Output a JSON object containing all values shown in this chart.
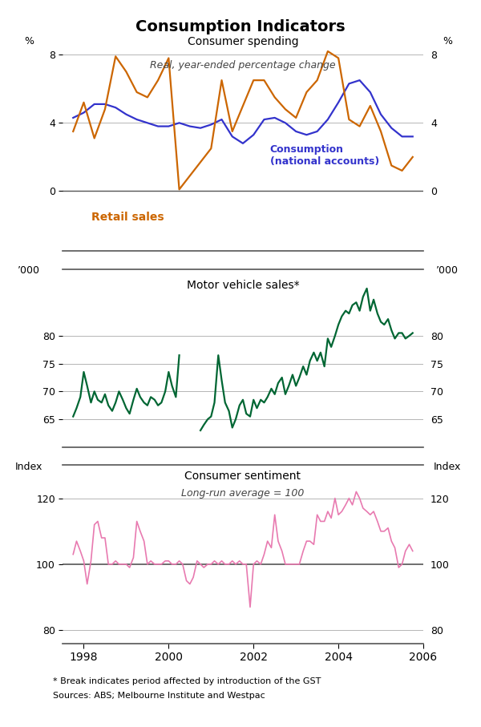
{
  "title": "Consumption Indicators",
  "title_fontsize": 14,
  "footnote1": "* Break indicates period affected by introduction of the GST",
  "footnote2": "Sources: ABS; Melbourne Institute and Westpac",
  "panel1": {
    "title": "Consumer spending",
    "subtitle": "Real, year-ended percentage change",
    "ylabel_left": "%",
    "ylabel_right": "%",
    "ylim": [
      -3.5,
      9.5
    ],
    "yticks": [
      0,
      4,
      8
    ],
    "ymin_data": 0,
    "color_consumption": "#3333cc",
    "color_retail": "#cc6600",
    "label_consumption": "Consumption\n(national accounts)",
    "label_retail": "Retail sales",
    "consumption_x": [
      1997.75,
      1998.0,
      1998.25,
      1998.5,
      1998.75,
      1999.0,
      1999.25,
      1999.5,
      1999.75,
      2000.0,
      2000.25,
      2000.5,
      2000.75,
      2001.0,
      2001.25,
      2001.5,
      2001.75,
      2002.0,
      2002.25,
      2002.5,
      2002.75,
      2003.0,
      2003.25,
      2003.5,
      2003.75,
      2004.0,
      2004.25,
      2004.5,
      2004.75,
      2005.0,
      2005.25,
      2005.5,
      2005.75
    ],
    "consumption_y": [
      4.3,
      4.6,
      5.1,
      5.1,
      4.9,
      4.5,
      4.2,
      4.0,
      3.8,
      3.8,
      4.0,
      3.8,
      3.7,
      3.9,
      4.2,
      3.2,
      2.8,
      3.3,
      4.2,
      4.3,
      4.0,
      3.5,
      3.3,
      3.5,
      4.2,
      5.2,
      6.3,
      6.5,
      5.8,
      4.5,
      3.7,
      3.2,
      3.2
    ],
    "retail_x": [
      1997.75,
      1998.0,
      1998.25,
      1998.5,
      1998.75,
      1999.0,
      1999.25,
      1999.5,
      1999.75,
      2000.0,
      2000.25,
      2001.0,
      2001.25,
      2001.5,
      2001.75,
      2002.0,
      2002.25,
      2002.5,
      2002.75,
      2003.0,
      2003.25,
      2003.5,
      2003.75,
      2004.0,
      2004.25,
      2004.5,
      2004.75,
      2005.0,
      2005.25,
      2005.5,
      2005.75
    ],
    "retail_y": [
      3.5,
      5.2,
      3.1,
      4.8,
      7.9,
      7.0,
      5.8,
      5.5,
      6.5,
      7.8,
      0.1,
      2.5,
      6.5,
      3.5,
      5.0,
      6.5,
      6.5,
      5.5,
      4.8,
      4.3,
      5.8,
      6.5,
      8.2,
      7.8,
      4.2,
      3.8,
      5.0,
      3.5,
      1.5,
      1.2,
      2.0
    ]
  },
  "panel2": {
    "title": "Motor vehicle sales*",
    "ylabel_left": "’000",
    "ylabel_right": "’000",
    "ylim": [
      60,
      92
    ],
    "yticks": [
      65,
      70,
      75,
      80
    ],
    "color_mv": "#006633",
    "mv_x1": [
      1997.75,
      1997.83,
      1997.92,
      1998.0,
      1998.08,
      1998.17,
      1998.25,
      1998.33,
      1998.42,
      1998.5,
      1998.58,
      1998.67,
      1998.75,
      1998.83,
      1998.92,
      1999.0,
      1999.08,
      1999.17,
      1999.25,
      1999.33,
      1999.42,
      1999.5,
      1999.58,
      1999.67,
      1999.75,
      1999.83,
      1999.92,
      2000.0,
      2000.08,
      2000.17,
      2000.25
    ],
    "mv_y1": [
      65.5,
      67.0,
      69.0,
      73.5,
      71.0,
      68.0,
      70.0,
      68.5,
      68.0,
      69.5,
      67.5,
      66.5,
      68.0,
      70.0,
      68.5,
      67.0,
      66.0,
      68.5,
      70.5,
      69.0,
      68.0,
      67.5,
      69.0,
      68.5,
      67.5,
      68.0,
      70.0,
      73.5,
      71.0,
      69.0,
      76.5
    ],
    "mv_x2": [
      2000.75,
      2000.83,
      2000.92,
      2001.0,
      2001.08,
      2001.17,
      2001.25,
      2001.33,
      2001.42,
      2001.5,
      2001.58,
      2001.67,
      2001.75,
      2001.83,
      2001.92,
      2002.0,
      2002.08,
      2002.17,
      2002.25,
      2002.33,
      2002.42,
      2002.5,
      2002.58,
      2002.67,
      2002.75,
      2002.83,
      2002.92,
      2003.0,
      2003.08,
      2003.17,
      2003.25,
      2003.33,
      2003.42,
      2003.5,
      2003.58,
      2003.67,
      2003.75,
      2003.83,
      2003.92,
      2004.0,
      2004.08,
      2004.17,
      2004.25,
      2004.33,
      2004.42,
      2004.5,
      2004.58,
      2004.67,
      2004.75,
      2004.83,
      2004.92,
      2005.0,
      2005.08,
      2005.17,
      2005.25,
      2005.33,
      2005.42,
      2005.5,
      2005.58,
      2005.67,
      2005.75
    ],
    "mv_y2": [
      63.0,
      64.0,
      65.0,
      65.5,
      68.0,
      76.5,
      72.0,
      68.0,
      66.5,
      63.5,
      65.0,
      67.5,
      68.5,
      66.0,
      65.5,
      68.5,
      67.0,
      68.5,
      68.0,
      69.0,
      70.5,
      69.5,
      71.5,
      72.5,
      69.5,
      71.0,
      73.0,
      71.0,
      72.5,
      74.5,
      73.0,
      75.5,
      77.0,
      75.5,
      77.0,
      74.5,
      79.5,
      78.0,
      80.0,
      82.0,
      83.5,
      84.5,
      84.0,
      85.5,
      86.0,
      84.5,
      87.0,
      88.5,
      84.5,
      86.5,
      84.0,
      82.5,
      82.0,
      83.0,
      81.0,
      79.5,
      80.5,
      80.5,
      79.5,
      80.0,
      80.5
    ]
  },
  "panel3": {
    "title": "Consumer sentiment",
    "subtitle": "Long-run average = 100",
    "ylabel_left": "Index",
    "ylabel_right": "Index",
    "ylim": [
      76,
      130
    ],
    "yticks": [
      80,
      100,
      120
    ],
    "color_cs": "#e87ab0",
    "cs_x": [
      1997.75,
      1997.83,
      1997.92,
      1998.0,
      1998.08,
      1998.17,
      1998.25,
      1998.33,
      1998.42,
      1998.5,
      1998.58,
      1998.67,
      1998.75,
      1998.83,
      1998.92,
      1999.0,
      1999.08,
      1999.17,
      1999.25,
      1999.33,
      1999.42,
      1999.5,
      1999.58,
      1999.67,
      1999.75,
      1999.83,
      1999.92,
      2000.0,
      2000.08,
      2000.17,
      2000.25,
      2000.33,
      2000.42,
      2000.5,
      2000.58,
      2000.67,
      2000.75,
      2000.83,
      2000.92,
      2001.0,
      2001.08,
      2001.17,
      2001.25,
      2001.33,
      2001.42,
      2001.5,
      2001.58,
      2001.67,
      2001.75,
      2001.83,
      2001.92,
      2002.0,
      2002.08,
      2002.17,
      2002.25,
      2002.33,
      2002.42,
      2002.5,
      2002.58,
      2002.67,
      2002.75,
      2002.83,
      2002.92,
      2003.0,
      2003.08,
      2003.17,
      2003.25,
      2003.33,
      2003.42,
      2003.5,
      2003.58,
      2003.67,
      2003.75,
      2003.83,
      2003.92,
      2004.0,
      2004.08,
      2004.17,
      2004.25,
      2004.33,
      2004.42,
      2004.5,
      2004.58,
      2004.67,
      2004.75,
      2004.83,
      2004.92,
      2005.0,
      2005.08,
      2005.17,
      2005.25,
      2005.33,
      2005.42,
      2005.5,
      2005.58,
      2005.67,
      2005.75
    ],
    "cs_y": [
      103,
      107,
      104,
      101,
      94,
      101,
      112,
      113,
      108,
      108,
      100,
      100,
      101,
      100,
      100,
      100,
      99,
      102,
      113,
      110,
      107,
      100,
      101,
      100,
      100,
      100,
      101,
      101,
      100,
      100,
      101,
      100,
      95,
      94,
      96,
      101,
      100,
      99,
      100,
      100,
      101,
      100,
      101,
      100,
      100,
      101,
      100,
      101,
      100,
      100,
      87,
      100,
      101,
      100,
      103,
      107,
      105,
      115,
      107,
      104,
      100,
      100,
      100,
      100,
      100,
      104,
      107,
      107,
      106,
      115,
      113,
      113,
      116,
      114,
      120,
      115,
      116,
      118,
      120,
      118,
      122,
      120,
      117,
      116,
      115,
      116,
      113,
      110,
      110,
      111,
      107,
      105,
      99,
      100,
      104,
      106,
      104
    ]
  },
  "xmin": 1997.5,
  "xmax": 2006.0,
  "xticks": [
    1998,
    2000,
    2002,
    2004,
    2006
  ],
  "xtick_labels": [
    "1998",
    "2000",
    "2002",
    "2004",
    "2006"
  ],
  "bg_color": "#ffffff",
  "grid_color": "#aaaaaa",
  "border_color": "#555555"
}
